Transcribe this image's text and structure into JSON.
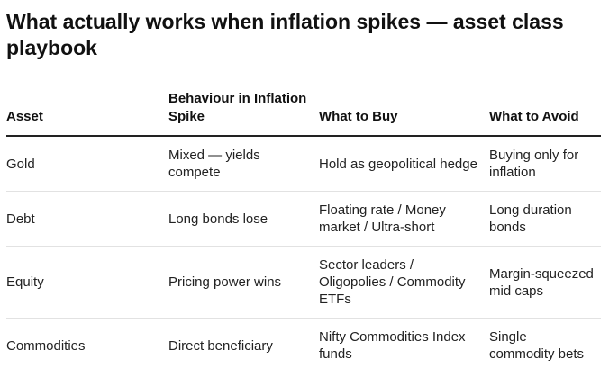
{
  "header": {
    "title": "What actually works when inflation spikes — asset class playbook"
  },
  "table": {
    "columns": [
      "Asset",
      "Behaviour in Inflation Spike",
      "What to Buy",
      "What to Avoid"
    ],
    "rows": [
      [
        "Gold",
        "Mixed — yields compete",
        "Hold as geopolitical hedge",
        "Buying only for inflation"
      ],
      [
        "Debt",
        "Long bonds lose",
        "Floating rate / Money market / Ultra-short",
        "Long duration bonds"
      ],
      [
        "Equity",
        "Pricing power wins",
        "Sector leaders / Oligopolies / Commodity ETFs",
        "Margin-squeezed mid caps"
      ],
      [
        "Commodities",
        "Direct beneficiary",
        "Nifty Commodities Index funds",
        "Single commodity bets"
      ]
    ]
  }
}
